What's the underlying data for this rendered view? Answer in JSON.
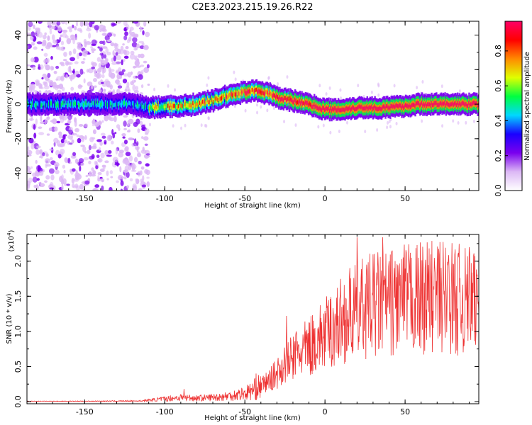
{
  "title": "C2E3.2023.215.19.26.R22",
  "chart_data": [
    {
      "type": "heatmap",
      "xlabel": "Height of straight line (km)",
      "ylabel": "Frequency (Hz)",
      "xlim": [
        -186,
        96
      ],
      "ylim": [
        -50,
        48
      ],
      "x_ticks": [
        -150,
        -100,
        -50,
        0,
        50
      ],
      "x_tick_labels": [
        "-150",
        "-100",
        "-50",
        "0",
        "50"
      ],
      "y_ticks": [
        -40,
        -20,
        0,
        20,
        40
      ],
      "y_tick_labels": [
        "-40",
        "-20",
        "0",
        "20",
        "40"
      ],
      "colorbar": {
        "label": "Normalized spectral amplitude",
        "range": [
          0,
          0.97
        ],
        "ticks": [
          0.0,
          0.2,
          0.4,
          0.6,
          0.8
        ],
        "tick_labels": [
          "0.0",
          "0.2",
          "0.4",
          "0.6",
          "0.8"
        ],
        "colormap": [
          "#ffffff",
          "#dcb8f5",
          "#7a00ee",
          "#1a00ff",
          "#00d8ff",
          "#00ff40",
          "#e0ff00",
          "#ff8a00",
          "#ff0000",
          "#ff0066"
        ]
      },
      "ridge": {
        "x": [
          -186,
          -150,
          -120,
          -110,
          -90,
          -80,
          -70,
          -60,
          -55,
          -50,
          -45,
          -40,
          -35,
          -30,
          -20,
          -10,
          0,
          10,
          20,
          30,
          40,
          50,
          60,
          70,
          80,
          90,
          96
        ],
        "freq": [
          0,
          0,
          0,
          -2,
          -1,
          0,
          2,
          5,
          6,
          7,
          8,
          7,
          6,
          4,
          2,
          0,
          -3,
          -3,
          -2,
          -2,
          -2,
          -1,
          0,
          0,
          0,
          0,
          0
        ]
      },
      "noise_region_x": [
        -186,
        -110
      ]
    },
    {
      "type": "line",
      "xlabel": "Height of straight line (km)",
      "ylabel": "SNR (10 * v/v)",
      "y_multiplier": "(x10",
      "y_multiplier_exp": "4",
      "y_multiplier_close": ")",
      "xlim": [
        -186,
        96
      ],
      "ylim": [
        -0.03,
        2.38
      ],
      "x_ticks": [
        -150,
        -100,
        -50,
        0,
        50
      ],
      "x_tick_labels": [
        "-150",
        "-100",
        "-50",
        "0",
        "50"
      ],
      "y_ticks": [
        0.0,
        0.5,
        1.0,
        1.5,
        2.0
      ],
      "y_tick_labels": [
        "0.0",
        "0.5",
        "1.0",
        "1.5",
        "2.0"
      ],
      "color": "#ee3333",
      "envelope": {
        "x": [
          -186,
          -150,
          -115,
          -110,
          -100,
          -90,
          -80,
          -70,
          -60,
          -50,
          -45,
          -40,
          -35,
          -30,
          -25,
          -20,
          -15,
          -10,
          -5,
          0,
          5,
          10,
          20,
          30,
          40,
          50,
          60,
          70,
          80,
          90,
          96
        ],
        "y": [
          0.005,
          0.006,
          0.01,
          0.02,
          0.04,
          0.06,
          0.05,
          0.06,
          0.08,
          0.12,
          0.16,
          0.22,
          0.3,
          0.4,
          0.55,
          0.62,
          0.7,
          0.78,
          0.88,
          0.95,
          1.05,
          1.15,
          1.3,
          1.38,
          1.42,
          1.45,
          1.48,
          1.5,
          1.48,
          1.4,
          1.35
        ]
      },
      "spikes": [
        {
          "x": -88,
          "y": 0.18
        },
        {
          "x": -43,
          "y": 0.4
        },
        {
          "x": -24,
          "y": 1.22
        },
        {
          "x": -18,
          "y": 1.0
        },
        {
          "x": 20,
          "y": 2.34
        },
        {
          "x": 26,
          "y": 1.95
        },
        {
          "x": 36,
          "y": 2.34
        },
        {
          "x": 40,
          "y": 2.0
        },
        {
          "x": 45,
          "y": 1.96
        },
        {
          "x": 77,
          "y": 2.02
        },
        {
          "x": 90,
          "y": 2.2
        },
        {
          "x": 95,
          "y": 1.8
        }
      ]
    }
  ]
}
